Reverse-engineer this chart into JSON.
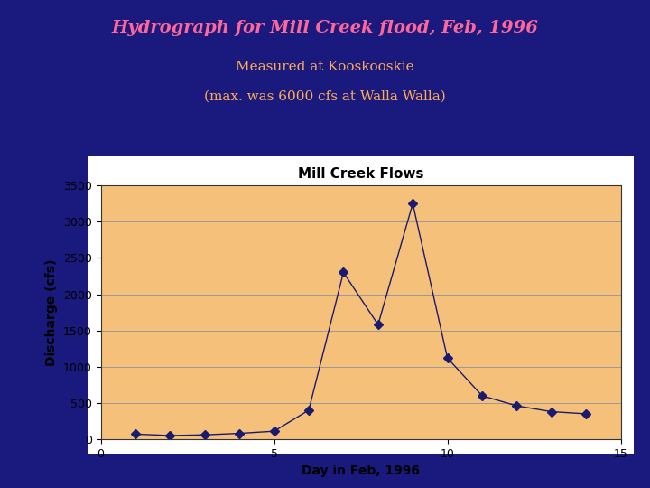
{
  "title_main": "Hydrograph for Mill Creek flood, Feb, 1996",
  "title_sub1": "Measured at Kooskooskie",
  "title_sub2": "(max. was 6000 cfs at Walla Walla)",
  "chart_title": "Mill Creek Flows",
  "xlabel": "Day in Feb, 1996",
  "ylabel": "Discharge (cfs)",
  "background_color": "#1a1a7e",
  "chart_bg_color": "#f5c07a",
  "chart_frame_color": "#ffffff",
  "title_main_color": "#ff6699",
  "title_sub_color": "#ffaa55",
  "line_color": "#1a1a6e",
  "marker_color": "#1a1a6e",
  "days": [
    1,
    2,
    3,
    4,
    5,
    6,
    7,
    8,
    9,
    10,
    11,
    12,
    13,
    14
  ],
  "discharge": [
    70,
    50,
    60,
    80,
    110,
    400,
    2300,
    1580,
    3250,
    1120,
    600,
    460,
    380,
    350
  ],
  "xlim": [
    0,
    15
  ],
  "ylim": [
    0,
    3500
  ],
  "yticks": [
    0,
    500,
    1000,
    1500,
    2000,
    2500,
    3000,
    3500
  ],
  "xticks": [
    0,
    5,
    10,
    15
  ],
  "title_main_fontsize": 14,
  "title_sub_fontsize": 11,
  "chart_title_fontsize": 11,
  "axis_label_fontsize": 10,
  "tick_fontsize": 9
}
